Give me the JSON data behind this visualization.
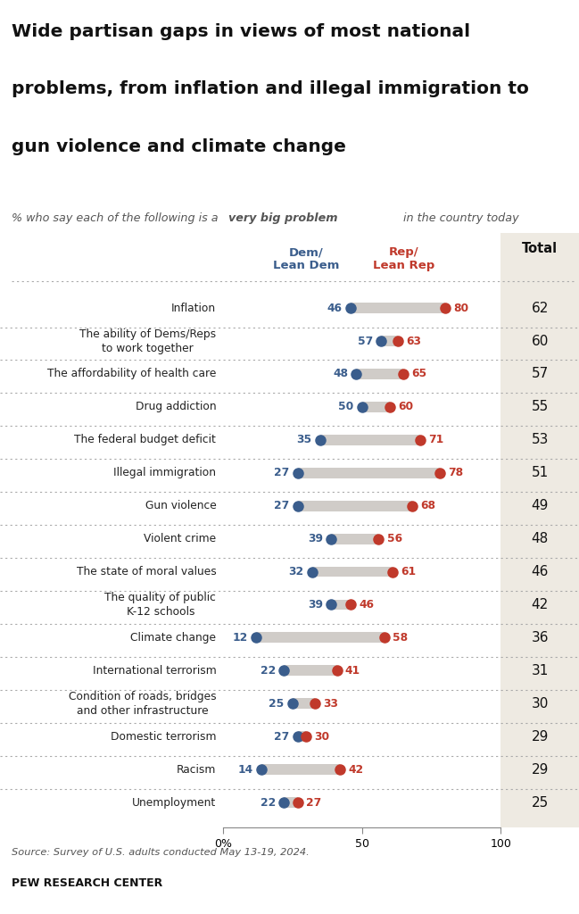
{
  "title_line1": "Wide partisan gaps in views of most national",
  "title_line2": "problems, from inflation and illegal immigration to",
  "title_line3": "gun violence and climate change",
  "subtitle_plain1": "% who say each of the following is a ",
  "subtitle_bold": "very big problem",
  "subtitle_plain2": " in the country today",
  "dem_label": "Dem/\nLean Dem",
  "rep_label": "Rep/\nLean Rep",
  "total_label": "Total",
  "categories": [
    "Inflation",
    "The ability of Dems/Reps\nto work together",
    "The affordability of health care",
    "Drug addiction",
    "The federal budget deficit",
    "Illegal immigration",
    "Gun violence",
    "Violent crime",
    "The state of moral values",
    "The quality of public\nK-12 schools",
    "Climate change",
    "International terrorism",
    "Condition of roads, bridges\nand other infrastructure",
    "Domestic terrorism",
    "Racism",
    "Unemployment"
  ],
  "dem_values": [
    46,
    57,
    48,
    50,
    35,
    27,
    27,
    39,
    32,
    39,
    12,
    22,
    25,
    27,
    14,
    22
  ],
  "rep_values": [
    80,
    63,
    65,
    60,
    71,
    78,
    68,
    56,
    61,
    46,
    58,
    41,
    33,
    30,
    42,
    27
  ],
  "total_values": [
    62,
    60,
    57,
    55,
    53,
    51,
    49,
    48,
    46,
    42,
    36,
    31,
    30,
    29,
    29,
    25
  ],
  "dem_color": "#3a5d8c",
  "rep_color": "#c0392b",
  "total_bg_color": "#eeeae2",
  "bar_color": "#d0ccc8",
  "background_color": "#ffffff",
  "source_text": "Source: Survey of U.S. adults conducted May 13-19, 2024.",
  "brand_text": "PEW RESEARCH CENTER"
}
